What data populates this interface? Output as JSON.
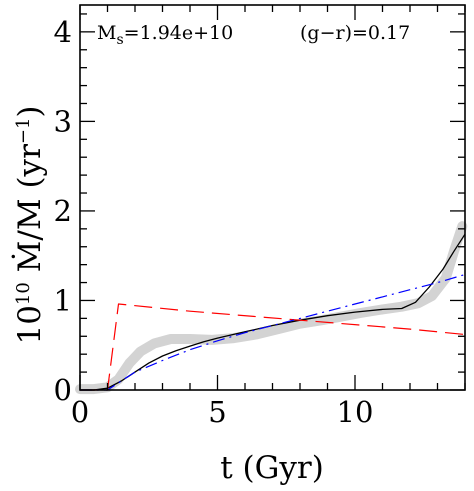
{
  "chart_data": {
    "type": "line",
    "xlabel": "t (Gyr)",
    "ylabel_prefix": "10",
    "ylabel_exp": "10",
    "ylabel_body": " Ṁ/M (yr",
    "ylabel_sup": "−1",
    "ylabel_close": ")",
    "xlim": [
      0,
      14
    ],
    "ylim": [
      0,
      4.3
    ],
    "xticks": [
      0,
      5,
      10
    ],
    "xtick_labels": [
      "0",
      "5",
      "10"
    ],
    "yticks": [
      0,
      1,
      2,
      3,
      4
    ],
    "ytick_labels": [
      "0",
      "1",
      "2",
      "3",
      "4"
    ],
    "annotations": {
      "mass_symbol": "M",
      "mass_subscript": "s",
      "mass_value": "=1.94e+10",
      "color_text": "(g−r)=0.17"
    },
    "series": [
      {
        "style": "thick-gray",
        "color": "#d3d3d3",
        "x": [
          0,
          0.5,
          1.0,
          1.4,
          1.8,
          2.2,
          2.7,
          3.3,
          4.0,
          4.8,
          5.6,
          6.4,
          7.2,
          8.0,
          8.8,
          9.5,
          10.2,
          11.0,
          11.7,
          12.3,
          12.8,
          13.3,
          13.6,
          13.9
        ],
        "y": [
          0.01,
          0.01,
          0.03,
          0.12,
          0.3,
          0.43,
          0.52,
          0.57,
          0.57,
          0.56,
          0.58,
          0.62,
          0.68,
          0.74,
          0.78,
          0.82,
          0.86,
          0.9,
          0.93,
          0.97,
          1.05,
          1.25,
          1.55,
          1.83
        ]
      },
      {
        "style": "solid-black",
        "color": "#000000",
        "x": [
          0,
          0.5,
          1.0,
          1.5,
          2.0,
          2.5,
          3.0,
          3.5,
          4.0,
          4.5,
          5.0,
          6.0,
          7.0,
          8.0,
          9.0,
          10.0,
          11.0,
          11.7,
          12.2,
          12.7,
          13.2,
          13.6,
          14.0
        ],
        "y": [
          0.0,
          0.0,
          0.02,
          0.1,
          0.2,
          0.3,
          0.38,
          0.44,
          0.49,
          0.54,
          0.58,
          0.65,
          0.72,
          0.78,
          0.83,
          0.87,
          0.9,
          0.91,
          0.98,
          1.15,
          1.35,
          1.55,
          1.74
        ]
      },
      {
        "style": "dash-red",
        "color": "#ff0000",
        "x": [
          0,
          1.0,
          1.4,
          4.0,
          8.0,
          12.0,
          14.0
        ],
        "y": [
          0.0,
          0.0,
          0.96,
          0.88,
          0.78,
          0.68,
          0.62
        ]
      },
      {
        "style": "dashdot-blue",
        "color": "#0000ff",
        "x": [
          0,
          1.0,
          1.5,
          2.0,
          3.0,
          4.0,
          5.0,
          6.0,
          7.0,
          8.0,
          9.0,
          10.0,
          11.0,
          12.0,
          13.0,
          14.0
        ],
        "y": [
          0.0,
          0.0,
          0.1,
          0.2,
          0.33,
          0.45,
          0.55,
          0.64,
          0.72,
          0.8,
          0.88,
          0.96,
          1.04,
          1.12,
          1.2,
          1.29
        ]
      }
    ]
  }
}
